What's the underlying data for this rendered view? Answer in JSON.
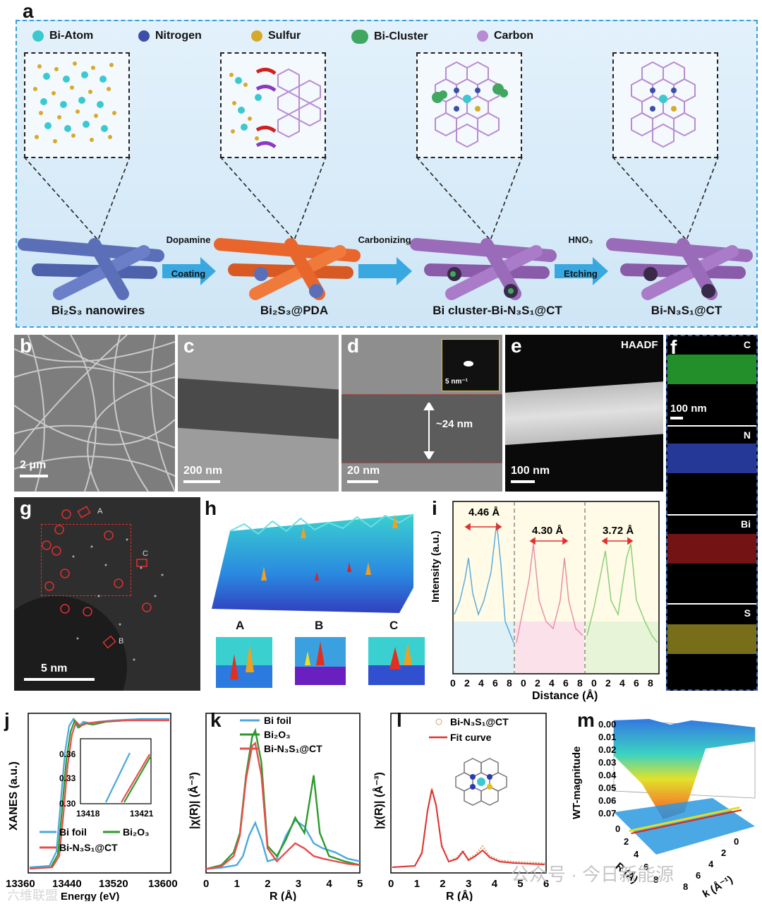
{
  "panel_labels": {
    "a": "a",
    "b": "b",
    "c": "c",
    "d": "d",
    "e": "e",
    "f": "f",
    "g": "g",
    "h": "h",
    "i": "i",
    "j": "j",
    "k": "k",
    "l": "l",
    "m": "m"
  },
  "legend": [
    {
      "label": "Bi-Atom",
      "color": "#39c9cf"
    },
    {
      "label": "Nitrogen",
      "color": "#3b4fa8"
    },
    {
      "label": "Sulfur",
      "color": "#d7a92a"
    },
    {
      "label": "Bi-Cluster",
      "color": "#3fa760"
    },
    {
      "label": "Carbon",
      "color": "#b98bd2"
    }
  ],
  "stages": [
    {
      "label": "Bi₂S₃ nanowires",
      "color": "#5a6fb8"
    },
    {
      "label": "Bi₂S₃@PDA",
      "color": "#e8662c"
    },
    {
      "label": "Bi cluster-Bi-N₃S₁@CT",
      "color": "#9a6bb8"
    },
    {
      "label": "Bi-N₃S₁@CT",
      "color": "#9a6bb8"
    }
  ],
  "steps": [
    {
      "top": "Dopamine",
      "bottom": "Coating"
    },
    {
      "top": "Carbonizing",
      "bottom": ""
    },
    {
      "top": "HNO₃",
      "bottom": "Etching"
    }
  ],
  "micrographs": {
    "b_scale": "2 μm",
    "c_scale": "200 nm",
    "d_scale": "20 nm",
    "d_thickness": "~24 nm",
    "d_inset": "5 nm⁻¹",
    "e_title": "HAADF",
    "e_scale": "100 nm",
    "f_scale": "100 nm",
    "f_maps": [
      {
        "el": "C",
        "color": "#2fbf3a"
      },
      {
        "el": "N",
        "color": "#3550d8"
      },
      {
        "el": "Bi",
        "color": "#c02020"
      },
      {
        "el": "S",
        "color": "#c8b82a"
      }
    ],
    "g_scale": "5 nm",
    "g_marks": [
      "A",
      "B",
      "C"
    ],
    "h_labels": [
      "A",
      "B",
      "C"
    ]
  },
  "chart_i": {
    "ylabel": "Intensity (a.u.)",
    "xlabel": "Distance (Å)",
    "distances": [
      "4.46 Å",
      "4.30 Å",
      "3.72 Å"
    ],
    "ticks": [
      "0",
      "2",
      "4",
      "6",
      "8",
      "0",
      "2",
      "4",
      "6",
      "8",
      "0",
      "2",
      "4",
      "6",
      "8"
    ]
  },
  "chart_data": [
    {
      "type": "line",
      "id": "j",
      "xlabel": "Energy (eV)",
      "ylabel": "XANES (a.u.)",
      "xlim": [
        13360,
        13600
      ],
      "xticks": [
        "13360",
        "13440",
        "13520",
        "13600"
      ],
      "series": [
        {
          "name": "Bi foil",
          "color": "#4aa8e0"
        },
        {
          "name": "Bi₂O₃",
          "color": "#2a9a2a"
        },
        {
          "name": "Bi-N₃S₁@CT",
          "color": "#e84c4c"
        }
      ],
      "inset": {
        "xticks": [
          "13418",
          "13421"
        ],
        "yticks": [
          "0.36",
          "0.33",
          "0.30"
        ]
      }
    },
    {
      "type": "line",
      "id": "k",
      "xlabel": "R (Å)",
      "ylabel": "|χ(R)| (Å⁻³)",
      "xlim": [
        0,
        5
      ],
      "xticks": [
        "0",
        "1",
        "2",
        "3",
        "4",
        "5"
      ],
      "series": [
        {
          "name": "Bi foil",
          "color": "#4aa8e0",
          "x": [
            0,
            0.5,
            1.0,
            1.2,
            1.4,
            1.6,
            1.8,
            2.0,
            2.3,
            2.6,
            2.9,
            3.2,
            3.5,
            3.8,
            4.2,
            4.6,
            5.0
          ],
          "y": [
            0.02,
            0.03,
            0.05,
            0.12,
            0.28,
            0.38,
            0.25,
            0.08,
            0.1,
            0.28,
            0.4,
            0.35,
            0.22,
            0.18,
            0.15,
            0.1,
            0.08
          ]
        },
        {
          "name": "Bi₂O₃",
          "color": "#2a9a2a",
          "x": [
            0,
            0.5,
            0.9,
            1.1,
            1.3,
            1.5,
            1.6,
            1.8,
            2.0,
            2.3,
            2.6,
            2.9,
            3.2,
            3.5,
            3.7,
            4.0,
            4.5,
            5.0
          ],
          "y": [
            0.02,
            0.05,
            0.15,
            0.3,
            0.75,
            1.05,
            1.1,
            0.85,
            0.2,
            0.12,
            0.25,
            0.42,
            0.3,
            0.75,
            0.3,
            0.12,
            0.08,
            0.05
          ]
        },
        {
          "name": "Bi-N₃S₁@CT",
          "color": "#e84c4c",
          "x": [
            0,
            0.5,
            0.9,
            1.1,
            1.3,
            1.5,
            1.6,
            1.8,
            2.0,
            2.3,
            2.6,
            2.9,
            3.2,
            3.5,
            3.8,
            4.2,
            4.6,
            5.0
          ],
          "y": [
            0.02,
            0.04,
            0.12,
            0.28,
            0.72,
            0.98,
            1.0,
            0.75,
            0.18,
            0.08,
            0.15,
            0.22,
            0.18,
            0.12,
            0.1,
            0.08,
            0.06,
            0.05
          ]
        }
      ]
    },
    {
      "type": "line",
      "id": "l",
      "xlabel": "R (Å)",
      "ylabel": "|χ(R)| (Å⁻³)",
      "xlim": [
        0,
        6
      ],
      "xticks": [
        "0",
        "1",
        "2",
        "3",
        "4",
        "5",
        "6"
      ],
      "series": [
        {
          "name": "Bi-N₃S₁@CT",
          "color": "#d9a070"
        },
        {
          "name": "Fit curve",
          "color": "#e03030"
        }
      ]
    },
    {
      "type": "surface",
      "id": "m",
      "zlabel": "WT-magnitude",
      "xlabel": "R (Å)",
      "ylabel": "k (Å⁻¹)",
      "zticks": [
        "0.00",
        "0.01",
        "0.02",
        "0.03",
        "0.04",
        "0.05",
        "0.06",
        "0.07"
      ],
      "rticks": [
        "0",
        "2",
        "4",
        "6",
        "8"
      ],
      "kticks": [
        "0",
        "2",
        "4",
        "6",
        "8"
      ]
    }
  ],
  "watermark": "公众号 · 今日新能源",
  "watermark2": "六维联盟"
}
